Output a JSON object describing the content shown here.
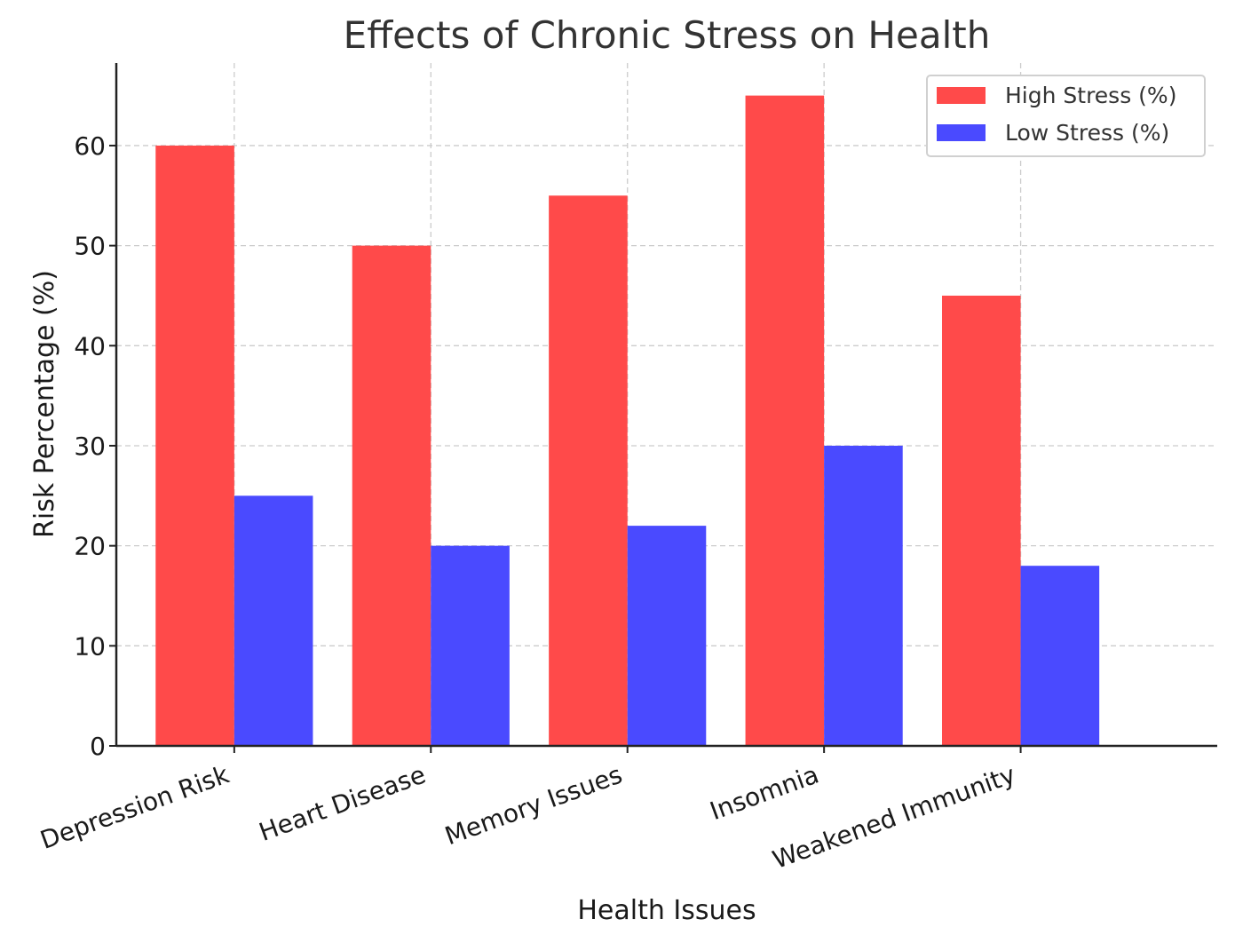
{
  "chart_data": {
    "type": "bar",
    "title": "Effects of Chronic Stress on Health",
    "xlabel": "Health Issues",
    "ylabel": "Risk Percentage (%)",
    "categories": [
      "Depression Risk",
      "Heart Disease",
      "Memory Issues",
      "Insomnia",
      "Weakened Immunity"
    ],
    "series": [
      {
        "name": "High Stress (%)",
        "color": "#ff4a4a",
        "values": [
          60,
          50,
          55,
          65,
          45
        ]
      },
      {
        "name": "Low Stress (%)",
        "color": "#4a4aff",
        "values": [
          25,
          20,
          22,
          30,
          18
        ]
      }
    ],
    "ylim": [
      0,
      68.25
    ],
    "yticks": [
      0,
      10,
      20,
      30,
      40,
      50,
      60
    ],
    "grid": true,
    "legend_position": "top-right"
  }
}
